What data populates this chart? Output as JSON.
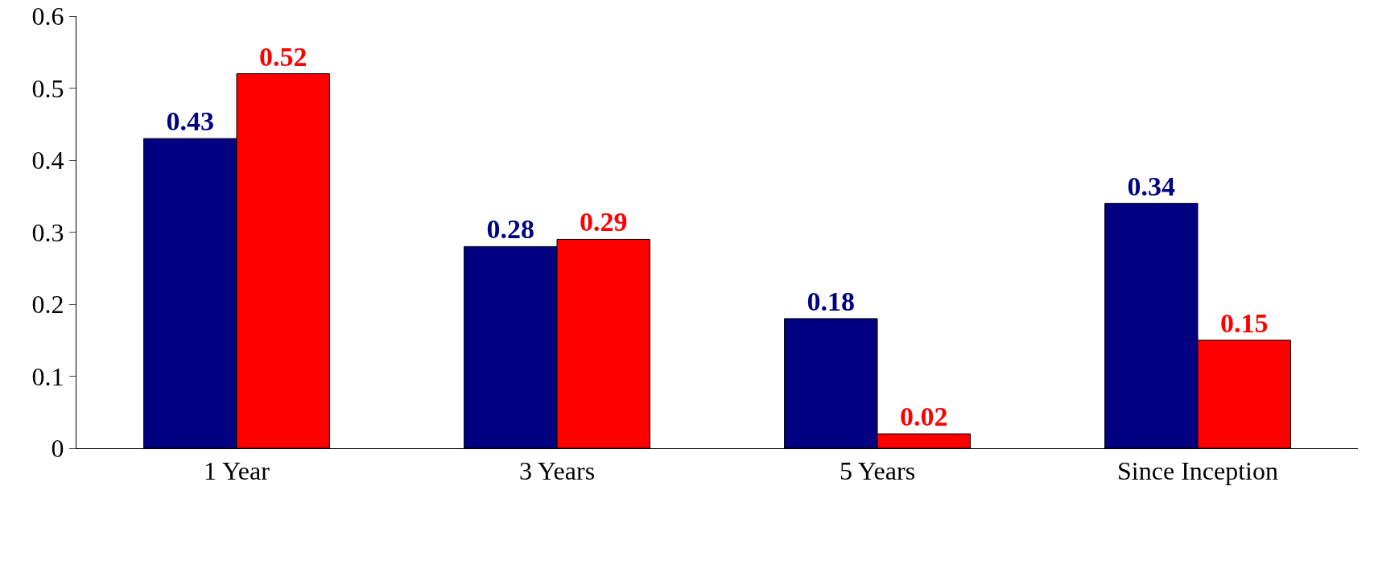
{
  "chart_data": {
    "type": "bar",
    "categories": [
      "1 Year",
      "3 Years",
      "5 Years",
      "Since Inception"
    ],
    "series": [
      {
        "color": "#000080",
        "values": [
          0.43,
          0.28,
          0.18,
          0.34
        ]
      },
      {
        "color": "#ff0000",
        "values": [
          0.52,
          0.29,
          0.02,
          0.15
        ]
      }
    ],
    "ylim": [
      0,
      0.6
    ],
    "yticks": [
      0,
      0.1,
      0.2,
      0.3,
      0.4,
      0.5,
      0.6
    ],
    "data_labels": true,
    "grid": false
  }
}
